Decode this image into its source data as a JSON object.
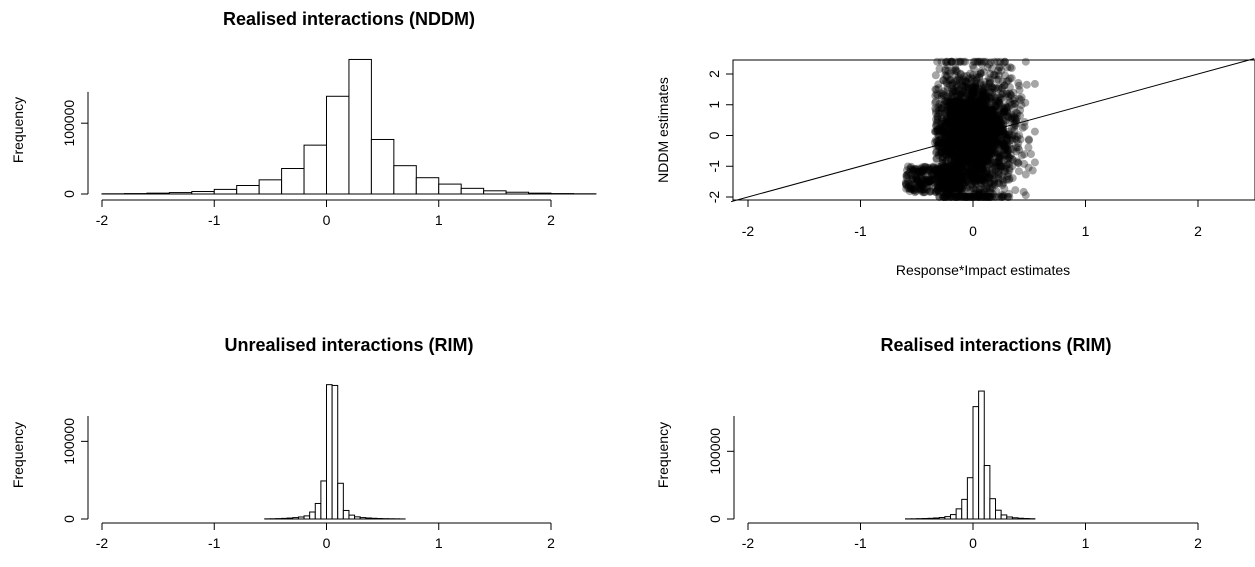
{
  "chart_data": [
    {
      "id": "hist_nddm",
      "type": "bar",
      "title": "Realised interactions (NDDM)",
      "xlabel": "",
      "ylabel": "Frequency",
      "xlim": [
        -2,
        2.4
      ],
      "ylim": [
        0,
        185000
      ],
      "xticks": [
        -2,
        -1,
        0,
        1,
        2
      ],
      "xtick_labels": [
        "-2",
        "-1",
        "0",
        "1",
        "2"
      ],
      "yticks": [
        0,
        100000
      ],
      "ytick_labels": [
        "0",
        "100000"
      ],
      "bin_width": 0.2,
      "bins": [
        [
          -2.0,
          300
        ],
        [
          -1.8,
          600
        ],
        [
          -1.6,
          1200
        ],
        [
          -1.4,
          2000
        ],
        [
          -1.2,
          3500
        ],
        [
          -1.0,
          6500
        ],
        [
          -0.8,
          12000
        ],
        [
          -0.6,
          20000
        ],
        [
          -0.4,
          36000
        ],
        [
          -0.2,
          69000
        ],
        [
          0.0,
          138000
        ],
        [
          0.2,
          190000
        ],
        [
          0.4,
          77000
        ],
        [
          0.6,
          40000
        ],
        [
          0.8,
          23000
        ],
        [
          1.0,
          14000
        ],
        [
          1.2,
          8000
        ],
        [
          1.4,
          4500
        ],
        [
          1.6,
          2500
        ],
        [
          1.8,
          1200
        ],
        [
          2.0,
          600
        ],
        [
          2.2,
          300
        ]
      ]
    },
    {
      "id": "scatter_compare",
      "type": "scatter",
      "title": "",
      "xlabel": "Response*Impact estimates",
      "ylabel": "NDDM estimates",
      "xlim": [
        -2.2,
        2.5
      ],
      "ylim": [
        -2.2,
        2.5
      ],
      "xticks": [
        -2,
        -1,
        0,
        1,
        2
      ],
      "xtick_labels": [
        "-2",
        "-1",
        "0",
        "1",
        "2"
      ],
      "yticks": [
        -2,
        -1,
        0,
        1,
        2
      ],
      "ytick_labels": [
        "-2",
        "-1",
        "0",
        "1",
        "2"
      ],
      "reference_line": {
        "slope": 1,
        "intercept": 0
      },
      "point_cloud_extent": {
        "x": [
          -0.6,
          0.55
        ],
        "y": [
          -2.0,
          2.4
        ]
      },
      "point_color": "#000000"
    },
    {
      "id": "hist_unrealised_rim",
      "type": "bar",
      "title": "Unrealised interactions (RIM)",
      "xlabel": "",
      "ylabel": "Frequency",
      "xlim": [
        -2,
        2.2
      ],
      "ylim": [
        0,
        170000
      ],
      "xticks": [
        -2,
        -1,
        0,
        1,
        2
      ],
      "xtick_labels": [
        "-2",
        "-1",
        "0",
        "1",
        "2"
      ],
      "yticks": [
        0,
        100000
      ],
      "ytick_labels": [
        "0",
        "100000"
      ],
      "bin_width": 0.05,
      "bins": [
        [
          -0.55,
          200
        ],
        [
          -0.5,
          300
        ],
        [
          -0.45,
          500
        ],
        [
          -0.4,
          800
        ],
        [
          -0.35,
          1200
        ],
        [
          -0.3,
          1800
        ],
        [
          -0.25,
          2600
        ],
        [
          -0.2,
          4000
        ],
        [
          -0.15,
          9000
        ],
        [
          -0.1,
          20000
        ],
        [
          -0.05,
          49000
        ],
        [
          0.0,
          173000
        ],
        [
          0.05,
          172000
        ],
        [
          0.1,
          46000
        ],
        [
          0.15,
          11000
        ],
        [
          0.2,
          5000
        ],
        [
          0.25,
          2800
        ],
        [
          0.3,
          1800
        ],
        [
          0.35,
          1300
        ],
        [
          0.4,
          900
        ],
        [
          0.45,
          600
        ],
        [
          0.5,
          400
        ],
        [
          0.55,
          300
        ],
        [
          0.6,
          200
        ],
        [
          0.65,
          100
        ]
      ]
    },
    {
      "id": "hist_realised_rim",
      "type": "bar",
      "title": "Realised interactions (RIM)",
      "xlabel": "",
      "ylabel": "Frequency",
      "xlim": [
        -2,
        2.2
      ],
      "ylim": [
        0,
        195000
      ],
      "xticks": [
        -2,
        -1,
        0,
        1,
        2
      ],
      "xtick_labels": [
        "-2",
        "-1",
        "0",
        "1",
        "2"
      ],
      "yticks": [
        0,
        100000
      ],
      "ytick_labels": [
        "0",
        "100000"
      ],
      "bin_width": 0.05,
      "bins": [
        [
          -0.6,
          200
        ],
        [
          -0.55,
          300
        ],
        [
          -0.5,
          500
        ],
        [
          -0.45,
          700
        ],
        [
          -0.4,
          1000
        ],
        [
          -0.35,
          1500
        ],
        [
          -0.3,
          2200
        ],
        [
          -0.25,
          3500
        ],
        [
          -0.2,
          6500
        ],
        [
          -0.15,
          15000
        ],
        [
          -0.1,
          29000
        ],
        [
          -0.05,
          61000
        ],
        [
          0.0,
          166000
        ],
        [
          0.05,
          189000
        ],
        [
          0.1,
          79000
        ],
        [
          0.15,
          30000
        ],
        [
          0.2,
          13000
        ],
        [
          0.25,
          6000
        ],
        [
          0.3,
          3000
        ],
        [
          0.35,
          1800
        ],
        [
          0.4,
          1100
        ],
        [
          0.45,
          700
        ],
        [
          0.5,
          400
        ]
      ]
    }
  ]
}
